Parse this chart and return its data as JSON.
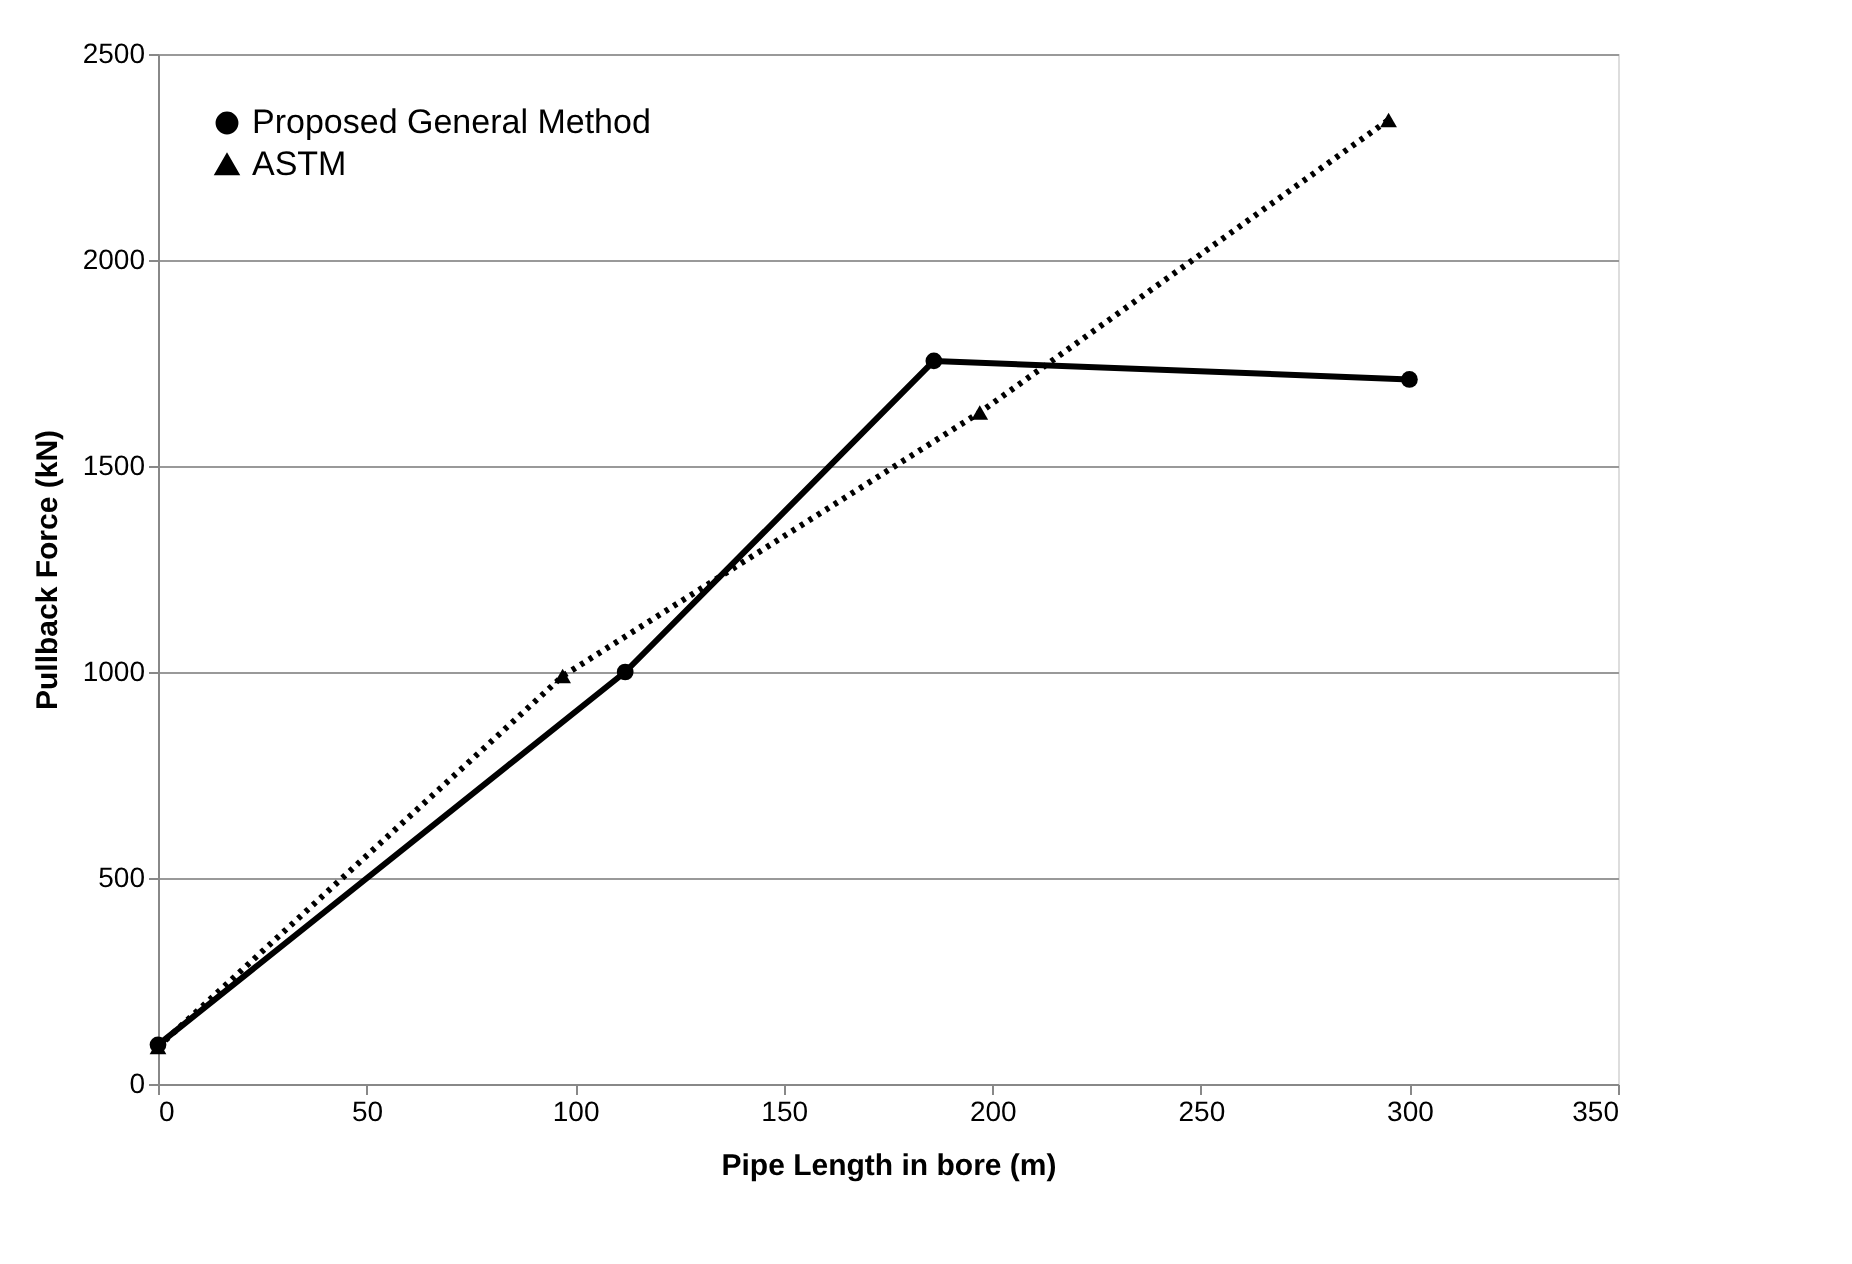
{
  "chart_data": {
    "type": "line",
    "xlabel": "Pipe Length in bore (m)",
    "ylabel": "Pullback Force (kN)",
    "xlim": [
      0,
      350
    ],
    "xticks": [
      0,
      50,
      100,
      150,
      200,
      250,
      300,
      350
    ],
    "ylim": [
      0,
      2500
    ],
    "yticks": [
      0,
      500,
      1000,
      1500,
      2000,
      2500
    ],
    "grid": "y",
    "legend": "top left",
    "series": [
      {
        "name": "Proposed General Method",
        "color": "#000000",
        "marker": "circle",
        "line_style": "solid",
        "x": [
          0,
          112,
          186,
          300
        ],
        "values": [
          95,
          1000,
          1755,
          1710
        ]
      },
      {
        "name": "ASTM",
        "color": "#000000",
        "marker": "triangle",
        "line_style": "dotted",
        "x": [
          0,
          97,
          197,
          295
        ],
        "values": [
          90,
          990,
          1630,
          2340
        ]
      }
    ]
  }
}
